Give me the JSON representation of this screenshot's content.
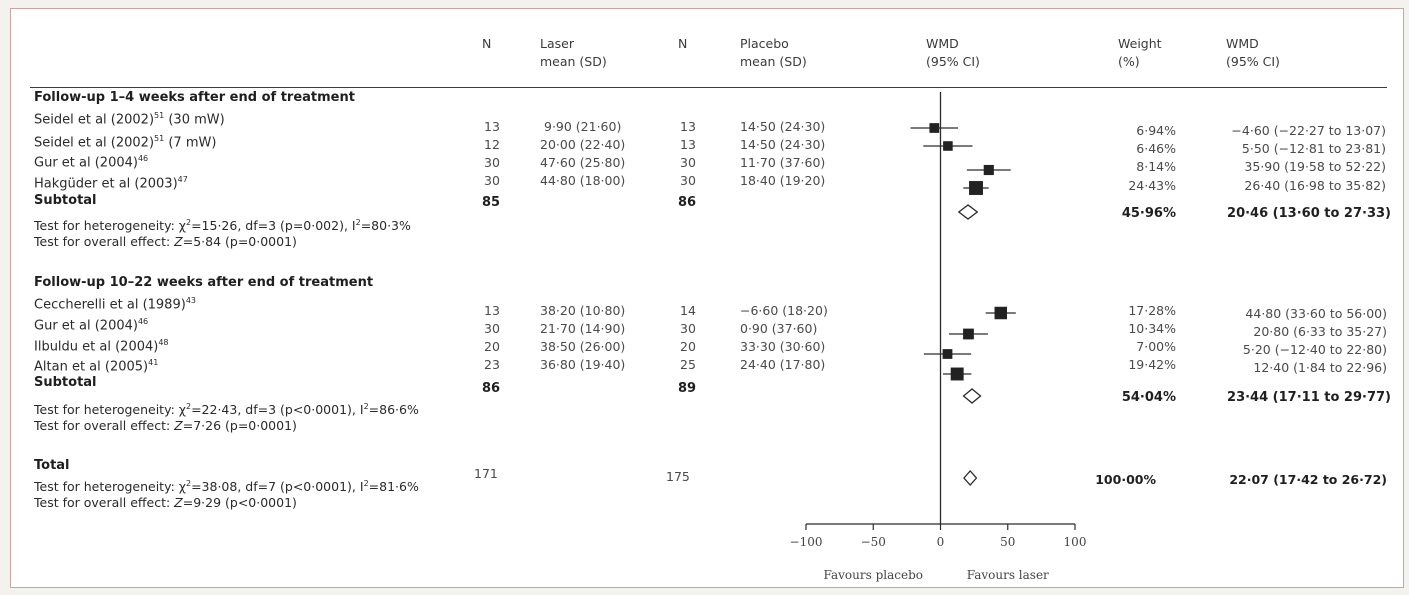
{
  "header": {
    "n1": "N",
    "laser": [
      "Laser",
      "mean (SD)"
    ],
    "n2": "N",
    "placebo": [
      "Placebo",
      "mean (SD)"
    ],
    "wmd_plot": [
      "WMD",
      "(95% CI)"
    ],
    "weight": [
      "Weight",
      "(%)"
    ],
    "wmd": [
      "WMD",
      "(95% CI)"
    ]
  },
  "groups": [
    {
      "title": "Follow-up 1–4 weeks after end of treatment",
      "studies": [
        {
          "name": "Seidel et al (2002)",
          "ref": "51",
          "suffix": " (30 mW)",
          "n1": "13",
          "laser": "9·90 (21·60)",
          "n2": "13",
          "placebo": "14·50 (24·30)",
          "weight": "6·94%",
          "ci": "−4·60 (−22·27 to 13·07)"
        },
        {
          "name": "Seidel et al (2002)",
          "ref": "51",
          "suffix": " (7 mW)",
          "n1": "12",
          "laser": "20·00 (22·40)",
          "n2": "13",
          "placebo": "14·50 (24·30)",
          "weight": "6·46%",
          "ci": "5·50 (−12·81 to 23·81)"
        },
        {
          "name": "Gur et al (2004)",
          "ref": "46",
          "suffix": "",
          "n1": "30",
          "laser": "47·60 (25·80)",
          "n2": "30",
          "placebo": "11·70 (37·60)",
          "weight": "8·14%",
          "ci": "35·90 (19·58 to 52·22)"
        },
        {
          "name": "Hakgüder et al (2003)",
          "ref": "47",
          "suffix": "",
          "n1": "30",
          "laser": "44·80 (18·00)",
          "n2": "30",
          "placebo": "18·40 (19·20)",
          "weight": "24·43%",
          "ci": "26·40 (16·98 to 35·82)"
        }
      ],
      "subtotal": {
        "label": "Subtotal",
        "n1": "85",
        "n2": "86",
        "weight": "45·96%",
        "ci": "20·46 (13·60 to 27·33)"
      },
      "het": [
        "Test for heterogeneity: χ",
        "2",
        "=15·26, df=3 (p=0·002), I",
        "2",
        "=80·3%"
      ],
      "overall": [
        "Test for overall effect: ",
        "Z",
        "=5·84 (p=0·0001)"
      ]
    },
    {
      "title": "Follow-up 10–22 weeks after end of treatment",
      "studies": [
        {
          "name": "Ceccherelli et al (1989)",
          "ref": "43",
          "suffix": "",
          "n1": "13",
          "laser": "38·20 (10·80)",
          "n2": "14",
          "placebo": "−6·60 (18·20)",
          "weight": "17·28%",
          "ci": "44·80 (33·60 to 56·00)"
        },
        {
          "name": "Gur et al (2004)",
          "ref": "46",
          "suffix": "",
          "n1": "30",
          "laser": "21·70 (14·90)",
          "n2": "30",
          "placebo": "0·90 (37·60)",
          "weight": "10·34%",
          "ci": "20·80 (6·33 to 35·27)"
        },
        {
          "name": "Ilbuldu et al (2004)",
          "ref": "48",
          "suffix": "",
          "n1": "20",
          "laser": "38·50 (26·00)",
          "n2": "20",
          "placebo": "33·30 (30·60)",
          "weight": "7·00%",
          "ci": "5·20 (−12·40 to 22·80)"
        },
        {
          "name": "Altan et al (2005)",
          "ref": "41",
          "suffix": "",
          "n1": "23",
          "laser": "36·80 (19·40)",
          "n2": "25",
          "placebo": "24·40 (17·80)",
          "weight": "19·42%",
          "ci": "12·40 (1·84 to 22·96)"
        }
      ],
      "subtotal": {
        "label": "Subtotal",
        "n1": "86",
        "n2": "89",
        "weight": "54·04%",
        "ci": "23·44 (17·11 to 29·77)"
      },
      "het": [
        "Test for heterogeneity: χ",
        "2",
        "=22·43, df=3 (p<0·0001), I",
        "2",
        "=86·6%"
      ],
      "overall": [
        "Test for overall effect: ",
        "Z",
        "=7·26 (p=0·0001)"
      ]
    }
  ],
  "total": {
    "label": "Total",
    "n1": "171",
    "n2": "175",
    "weight": "100·00%",
    "ci": "22·07 (17·42 to 26·72)",
    "het": [
      "Test for heterogeneity: χ",
      "2",
      "=38·08, df=7 (p<0·0001), I",
      "2",
      "=81·6%"
    ],
    "overall": [
      "Test for overall effect: ",
      "Z",
      "=9·29 (p<0·0001)"
    ]
  },
  "axis": {
    "ticks": [
      -100,
      -50,
      0,
      50,
      100
    ],
    "tick_labels": [
      "−100",
      "−50",
      "0",
      "50",
      "100"
    ],
    "favours_left": "Favours placebo",
    "favours_right": "Favours laser"
  },
  "chart_data": {
    "type": "forest",
    "xlim": [
      -100,
      100
    ],
    "reference_line": 0,
    "studies": [
      {
        "group": 0,
        "est": -4.6,
        "lo": -22.27,
        "hi": 13.07,
        "weight": 6.94
      },
      {
        "group": 0,
        "est": 5.5,
        "lo": -12.81,
        "hi": 23.81,
        "weight": 6.46
      },
      {
        "group": 0,
        "est": 35.9,
        "lo": 19.58,
        "hi": 52.22,
        "weight": 8.14
      },
      {
        "group": 0,
        "est": 26.4,
        "lo": 16.98,
        "hi": 35.82,
        "weight": 24.43
      },
      {
        "group": 1,
        "est": 44.8,
        "lo": 33.6,
        "hi": 56.0,
        "weight": 17.28
      },
      {
        "group": 1,
        "est": 20.8,
        "lo": 6.33,
        "hi": 35.27,
        "weight": 10.34
      },
      {
        "group": 1,
        "est": 5.2,
        "lo": -12.4,
        "hi": 22.8,
        "weight": 7.0
      },
      {
        "group": 1,
        "est": 12.4,
        "lo": 1.84,
        "hi": 22.96,
        "weight": 19.42
      }
    ],
    "summaries": [
      {
        "est": 20.46,
        "lo": 13.6,
        "hi": 27.33
      },
      {
        "est": 23.44,
        "lo": 17.11,
        "hi": 29.77
      },
      {
        "est": 22.07,
        "lo": 17.42,
        "hi": 26.72
      }
    ]
  }
}
